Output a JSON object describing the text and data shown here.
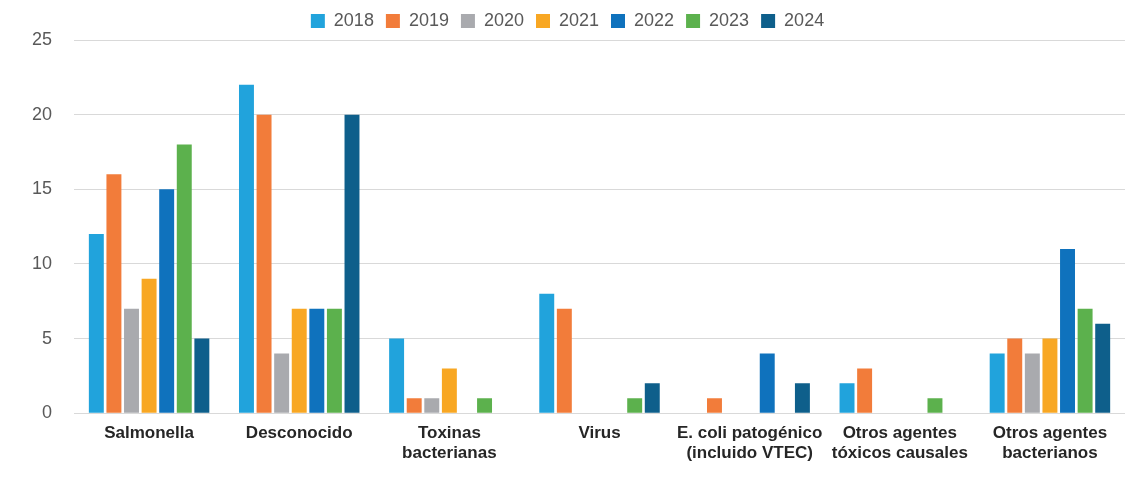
{
  "chart_data": {
    "type": "bar",
    "categories": [
      "Salmonella",
      "Desconocido",
      "Toxinas bacterianas",
      "Virus",
      "E. coli patogénico (incluido VTEC)",
      "Otros agentes tóxicos causales",
      "Otros agentes bacterianos"
    ],
    "series": [
      {
        "name": "2018",
        "color": "#21a3dc",
        "values": [
          12,
          22,
          5,
          8,
          0,
          2,
          4
        ]
      },
      {
        "name": "2019",
        "color": "#f27c3a",
        "values": [
          16,
          20,
          1,
          7,
          1,
          3,
          5
        ]
      },
      {
        "name": "2020",
        "color": "#a9aaae",
        "values": [
          7,
          4,
          1,
          0,
          0,
          0,
          4
        ]
      },
      {
        "name": "2021",
        "color": "#f8a723",
        "values": [
          9,
          7,
          3,
          0,
          0,
          0,
          5
        ]
      },
      {
        "name": "2022",
        "color": "#0f72bd",
        "values": [
          15,
          7,
          0,
          0,
          4,
          0,
          11
        ]
      },
      {
        "name": "2023",
        "color": "#5cb14d",
        "values": [
          18,
          7,
          1,
          1,
          0,
          1,
          7
        ]
      },
      {
        "name": "2024",
        "color": "#0e5f8b",
        "values": [
          5,
          20,
          0,
          2,
          2,
          0,
          6
        ]
      }
    ],
    "ylim": [
      0,
      25
    ],
    "yticks": [
      0,
      5,
      10,
      15,
      20,
      25
    ],
    "grid": "y",
    "legend": "top"
  }
}
